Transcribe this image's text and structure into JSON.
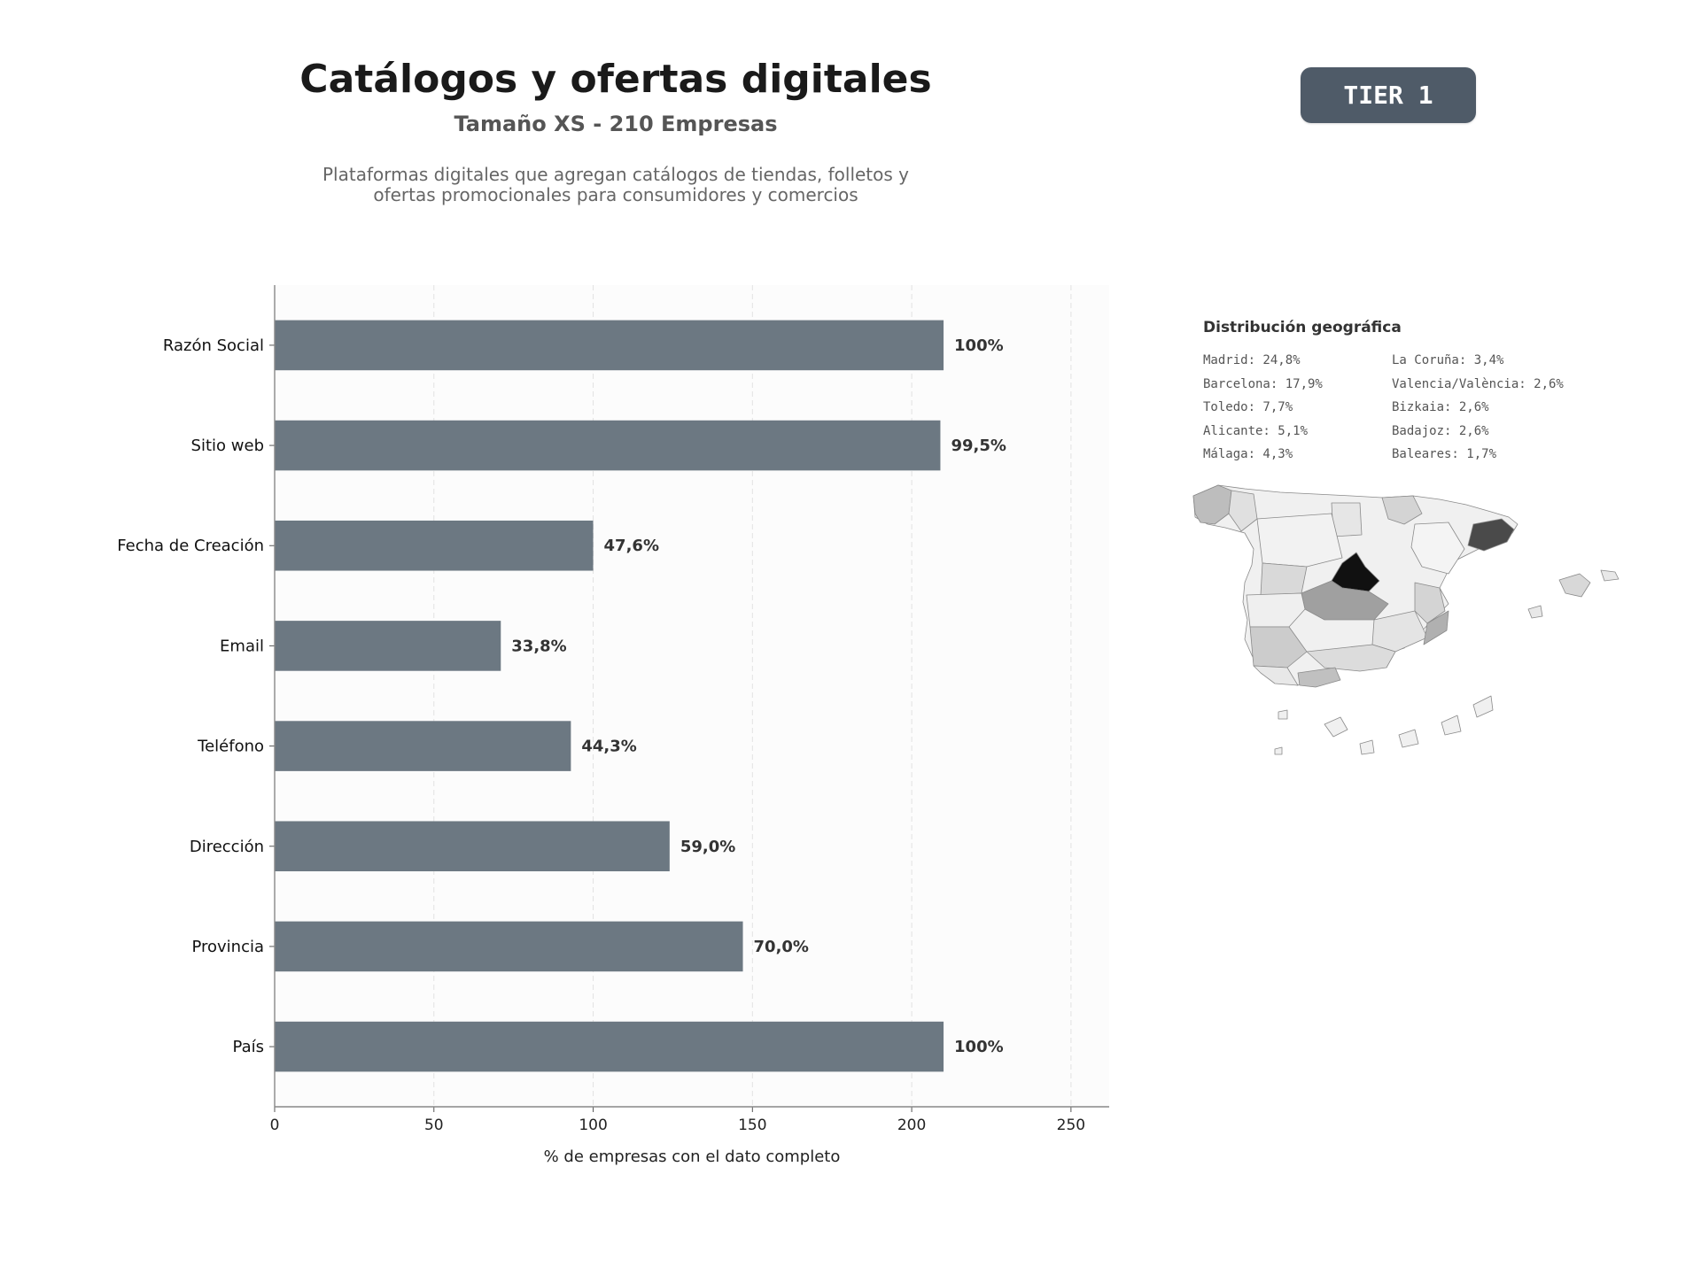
{
  "header": {
    "title": "Catálogos y ofertas digitales",
    "subtitle": "Tamaño XS - 210 Empresas",
    "description_line1": "Plataformas digitales que agregan catálogos de tiendas, folletos y",
    "description_line2": "ofertas promocionales para consumidores y comercios",
    "tier_badge": "TIER 1"
  },
  "chart_data": [
    {
      "type": "bar",
      "orientation": "horizontal",
      "categories": [
        "Razón Social",
        "Sitio web",
        "Fecha de Creación",
        "Email",
        "Teléfono",
        "Dirección",
        "Provincia",
        "País"
      ],
      "values": [
        210,
        209,
        100,
        71,
        93,
        124,
        147,
        210
      ],
      "data_labels": [
        "100%",
        "99,5%",
        "47,6%",
        "33,8%",
        "44,3%",
        "59,0%",
        "70,0%",
        "100%"
      ],
      "xlabel": "% de empresas con el dato completo",
      "ylabel": "",
      "xlim": [
        0,
        262
      ],
      "xticks": [
        0,
        50,
        100,
        150,
        200,
        250
      ],
      "grid": "vertical dashed",
      "bar_color": "#6c7882"
    }
  ],
  "geo": {
    "title": "Distribución geográfica",
    "items": [
      "Madrid: 24,8%",
      "La Coruña: 3,4%",
      "Barcelona: 17,9%",
      "Valencia/València: 2,6%",
      "Toledo: 7,7%",
      "Bizkaia: 2,6%",
      "Alicante: 5,1%",
      "Badajoz: 2,6%",
      "Málaga: 4,3%",
      "Baleares: 1,7%"
    ],
    "map_shading": {
      "Madrid": "#111111",
      "Barcelona": "#4a4a4a",
      "Toledo": "#a0a0a0",
      "Alicante": "#b0b0b0",
      "Málaga": "#c0c0c0",
      "default": "#f0f0f0"
    }
  }
}
